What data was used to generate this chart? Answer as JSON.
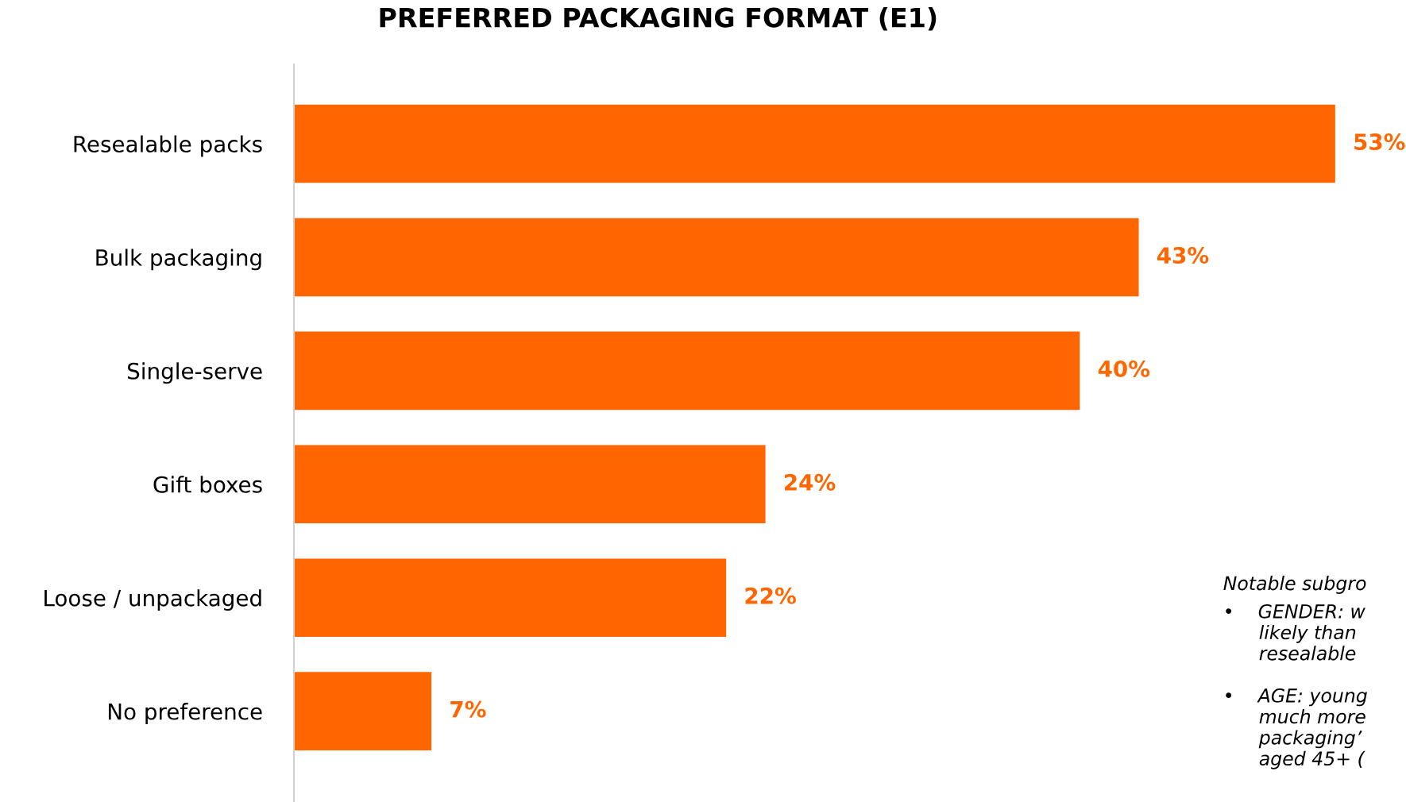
{
  "chart_data": {
    "type": "bar",
    "orientation": "horizontal",
    "title": "PREFERRED PACKAGING FORMAT (E1)",
    "categories": [
      "Resealable packs",
      "Bulk packaging",
      "Single-serve",
      "Gift boxes",
      "Loose / unpackaged",
      "No preference"
    ],
    "values": [
      53,
      43,
      40,
      24,
      22,
      7
    ],
    "value_labels": [
      "53%",
      "43%",
      "40%",
      "24%",
      "22%",
      "7%"
    ],
    "color": "#ff6600",
    "grid": false,
    "legend": false,
    "annotations": [
      "Notable subgro",
      "•    GENDER: w\n      likely than\n      resealable",
      "•    AGE: young\n      much more\n      packaging’\n      aged 45+ ("
    ]
  }
}
